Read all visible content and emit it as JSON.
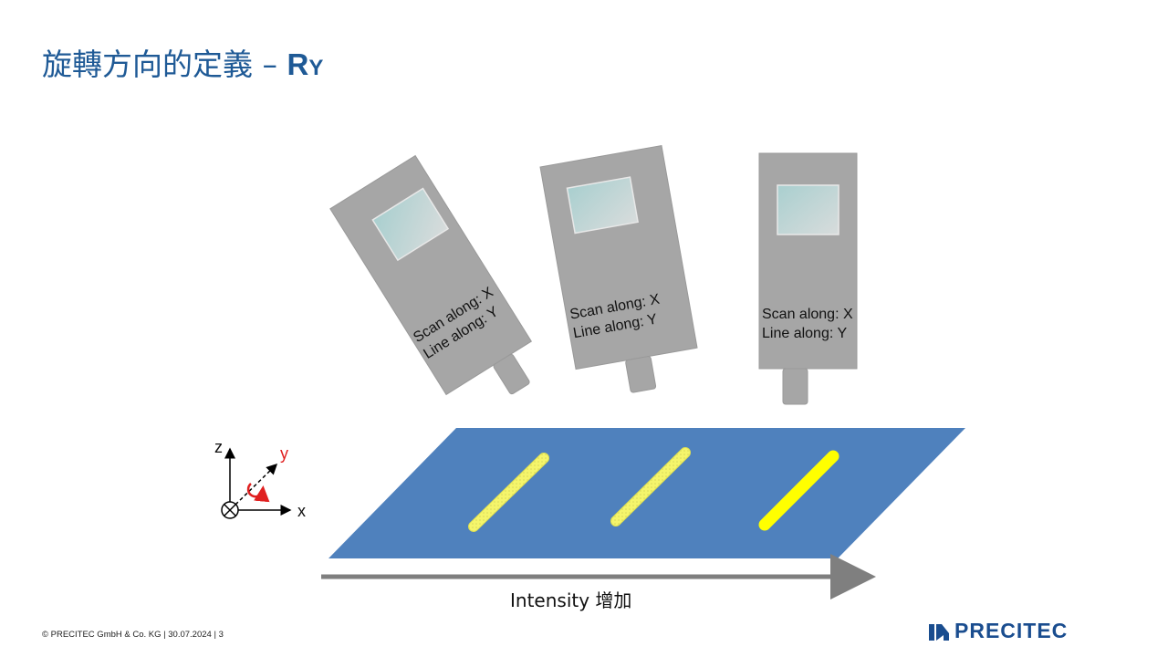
{
  "slide": {
    "title_main": "旋轉方向的定義 – ",
    "title_symbol": "R",
    "title_subscript": "Y"
  },
  "sensors": [
    {
      "scan_label": "Scan along: X",
      "line_label": "Line along: Y",
      "tilt_deg": -32
    },
    {
      "scan_label": "Scan along: X",
      "line_label": "Line along: Y",
      "tilt_deg": -10
    },
    {
      "scan_label": "Scan along: X",
      "line_label": "Line along: Y",
      "tilt_deg": 0
    }
  ],
  "axes": {
    "z_label": "z",
    "y_label": "y",
    "x_label": "x"
  },
  "intensity_label": "Intensity 增加",
  "footer": {
    "text": "© PRECITEC  GmbH  & Co. KG | 30.07.2024 | 3"
  },
  "logo": {
    "text": "PRECITEC"
  },
  "colors": {
    "title": "#1f5a96",
    "sensor_body": "#a6a6a6",
    "plate": "#4f81bd",
    "beam": "#f5f56b",
    "beam_bright": "#ffff00",
    "rotation_arrow": "#e02020",
    "logo": "#1a4d8f"
  }
}
